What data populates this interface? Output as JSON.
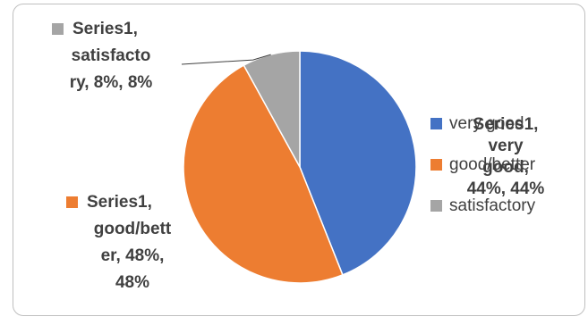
{
  "chart_data": {
    "type": "pie",
    "series_name": "Series1",
    "slices": [
      {
        "category": "very good",
        "value": 44,
        "percent": "44%",
        "color": "#4472c4"
      },
      {
        "category": "good/better",
        "value": 48,
        "percent": "48%",
        "color": "#ed7d31"
      },
      {
        "category": "satisfactory",
        "value": 8,
        "percent": "8%",
        "color": "#a5a5a5"
      }
    ],
    "legend": [
      "very good",
      "good/better",
      "satisfactory"
    ],
    "legend_position": "right",
    "data_labels": {
      "satisfactory": [
        "Series1,",
        "satisfacto",
        "ry, 8%, 8%"
      ],
      "good_better": [
        "Series1,",
        "good/bett",
        "er, 48%,",
        "48%"
      ],
      "very_good": [
        "Series1,",
        "very",
        "good,",
        "44%, 44%"
      ]
    }
  }
}
